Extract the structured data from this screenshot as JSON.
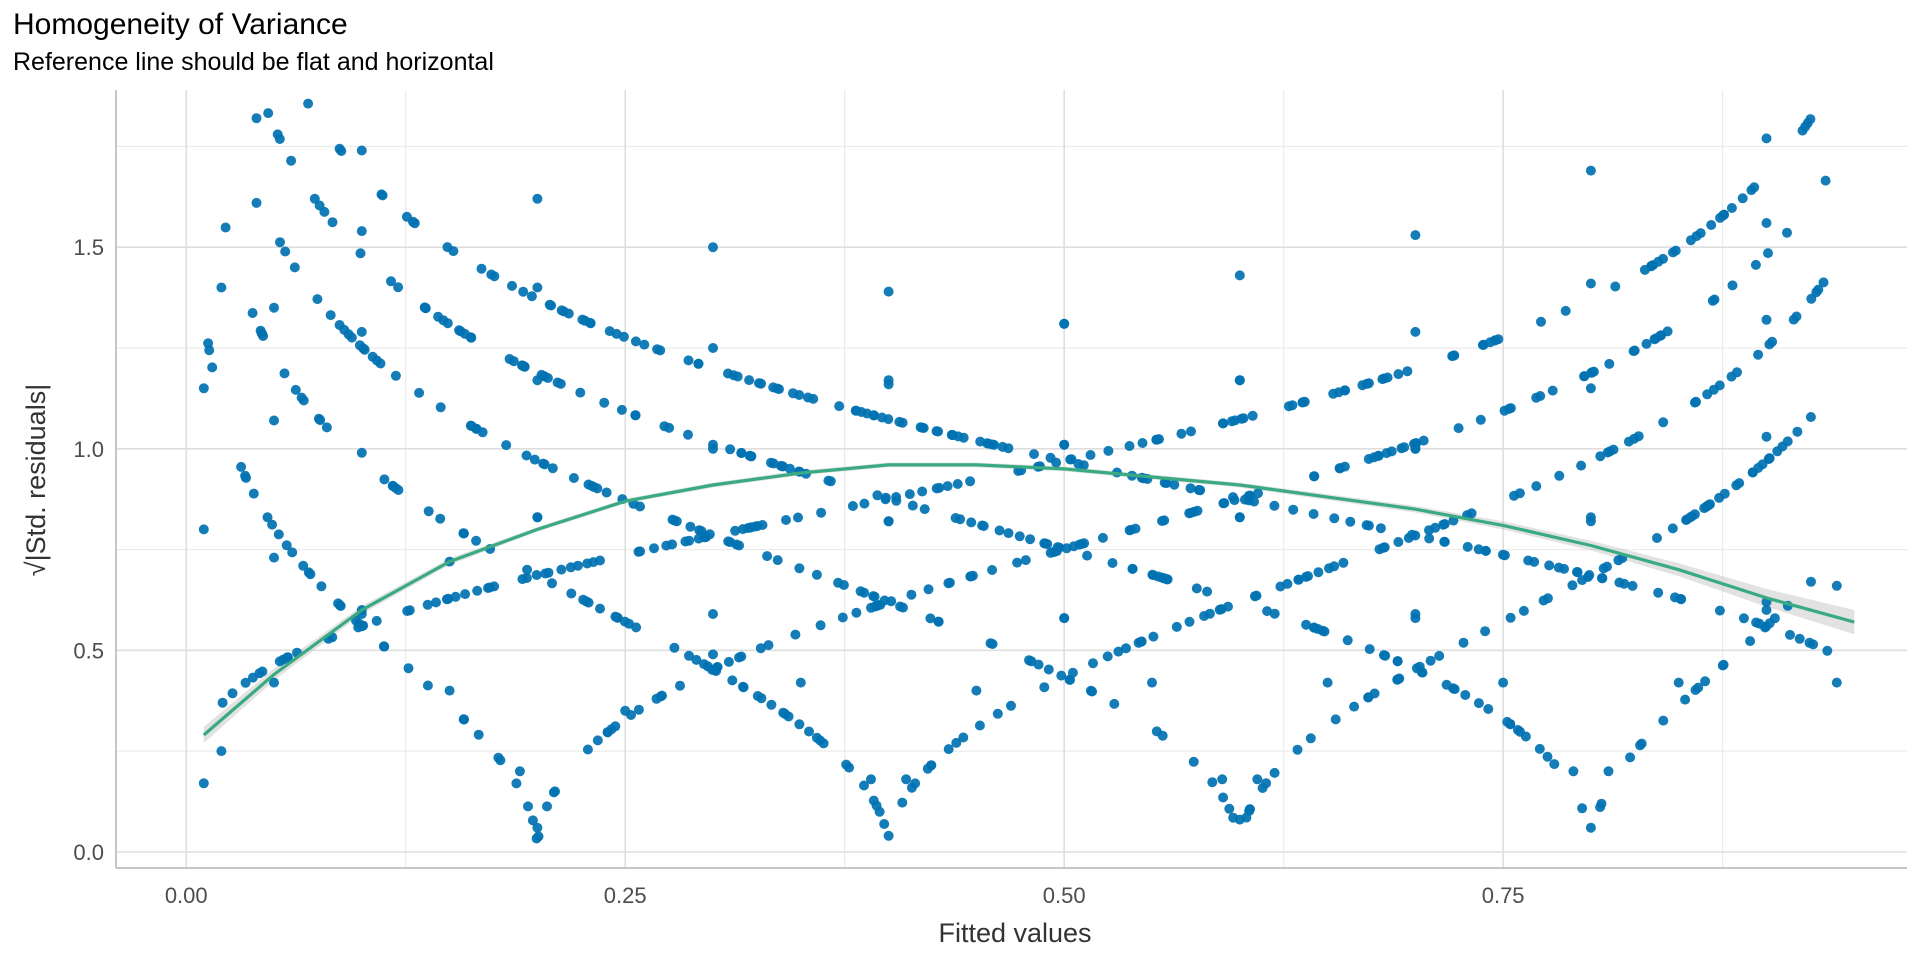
{
  "chart_data": {
    "type": "scatter",
    "title": "Homogeneity of Variance",
    "subtitle": "Reference line should be flat and horizontal",
    "xlabel": "Fitted values",
    "ylabel": "√|Std. residuals|",
    "xlim": [
      -0.04,
      0.98
    ],
    "ylim": [
      -0.04,
      1.89
    ],
    "x_ticks": [
      0.0,
      0.25,
      0.5,
      0.75
    ],
    "x_tick_labels": [
      "0.00",
      "0.25",
      "0.50",
      "0.75"
    ],
    "y_ticks": [
      0.0,
      0.5,
      1.0,
      1.5
    ],
    "y_tick_labels": [
      "0.0",
      "0.5",
      "1.0",
      "1.5"
    ],
    "grid": true,
    "point_color": "#0072B2",
    "line_color": "#3aaa80",
    "band_color": "#bfbfbf",
    "point_series": {
      "description_of_pattern": "residual bands y = sqrt(|k - x| / sqrt(x(1-x))) for k in 0, 0.2, 0.4, 0.6, 0.8, 1.0",
      "bands": [
        {
          "level": 0.0,
          "x": [
            0.01,
            0.02,
            0.05,
            0.1,
            0.15,
            0.2,
            0.3,
            0.4,
            0.5,
            0.6,
            0.7,
            0.8,
            0.9
          ],
          "y": [
            0.17,
            0.25,
            0.42,
            0.59,
            0.72,
            0.83,
            1.0,
            1.16,
            1.31,
            1.43,
            1.53,
            1.69,
            1.77
          ]
        },
        {
          "level": 0.2,
          "x": [
            0.01,
            0.05,
            0.1,
            0.15,
            0.19,
            0.2,
            0.21,
            0.25,
            0.3,
            0.4,
            0.5,
            0.6,
            0.7,
            0.8,
            0.9
          ],
          "y": [
            0.8,
            0.73,
            0.6,
            0.4,
            0.2,
            0.06,
            0.15,
            0.35,
            0.49,
            0.82,
            1.01,
            1.17,
            1.29,
            1.41,
            1.56
          ]
        },
        {
          "level": 0.4,
          "x": [
            0.01,
            0.05,
            0.1,
            0.2,
            0.3,
            0.35,
            0.39,
            0.4,
            0.41,
            0.45,
            0.5,
            0.6,
            0.7,
            0.8,
            0.9
          ],
          "y": [
            1.15,
            1.07,
            0.99,
            0.83,
            0.59,
            0.42,
            0.18,
            0.04,
            0.18,
            0.4,
            0.58,
            0.83,
            1.0,
            1.15,
            1.32
          ]
        },
        {
          "level": 0.6,
          "x": [
            0.02,
            0.05,
            0.1,
            0.2,
            0.3,
            0.4,
            0.5,
            0.55,
            0.59,
            0.6,
            0.61,
            0.65,
            0.7,
            0.8,
            0.9
          ],
          "y": [
            1.4,
            1.35,
            1.29,
            1.17,
            1.01,
            0.82,
            0.58,
            0.42,
            0.18,
            0.08,
            0.18,
            0.42,
            0.58,
            0.82,
            1.03
          ]
        },
        {
          "level": 0.8,
          "x": [
            0.04,
            0.1,
            0.2,
            0.3,
            0.4,
            0.5,
            0.6,
            0.7,
            0.75,
            0.79,
            0.8,
            0.81,
            0.85,
            0.9,
            0.94
          ],
          "y": [
            1.61,
            1.54,
            1.4,
            1.25,
            1.17,
            1.01,
            0.83,
            0.59,
            0.42,
            0.2,
            0.06,
            0.2,
            0.42,
            0.62,
            0.66
          ]
        },
        {
          "level": 1.0,
          "x": [
            0.04,
            0.1,
            0.2,
            0.3,
            0.4,
            0.5,
            0.6,
            0.7,
            0.8,
            0.9,
            0.94
          ],
          "y": [
            1.82,
            1.74,
            1.62,
            1.5,
            1.39,
            1.31,
            1.17,
            1.0,
            0.83,
            0.6,
            0.42
          ]
        }
      ]
    },
    "smooth_line": {
      "x": [
        0.01,
        0.05,
        0.1,
        0.15,
        0.2,
        0.25,
        0.3,
        0.35,
        0.4,
        0.45,
        0.5,
        0.55,
        0.6,
        0.65,
        0.7,
        0.75,
        0.8,
        0.85,
        0.9,
        0.95
      ],
      "y": [
        0.29,
        0.44,
        0.6,
        0.72,
        0.8,
        0.87,
        0.91,
        0.94,
        0.96,
        0.96,
        0.95,
        0.93,
        0.91,
        0.88,
        0.85,
        0.81,
        0.76,
        0.7,
        0.63,
        0.57
      ],
      "se_halfwidth": [
        0.02,
        0.015,
        0.01,
        0.008,
        0.006,
        0.006,
        0.006,
        0.006,
        0.006,
        0.006,
        0.006,
        0.006,
        0.006,
        0.007,
        0.008,
        0.01,
        0.012,
        0.016,
        0.022,
        0.03
      ]
    }
  }
}
